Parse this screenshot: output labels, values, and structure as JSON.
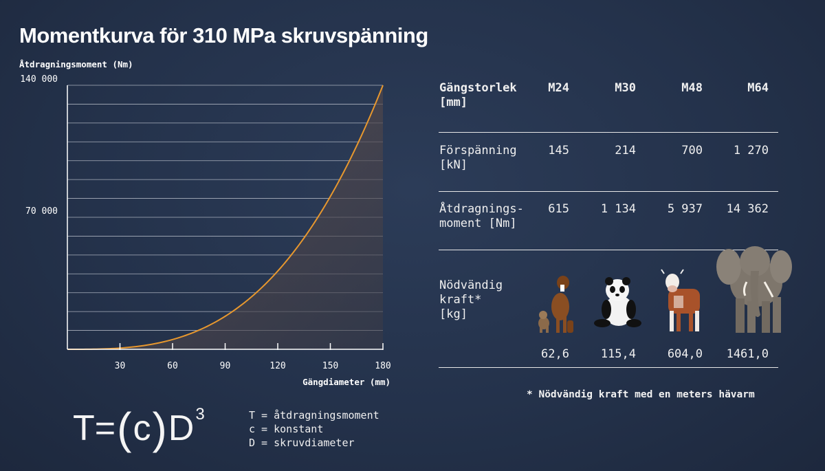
{
  "title": "Momentkurva för 310 MPa skruvspänning",
  "chart_data": {
    "type": "line",
    "title": "Momentkurva för 310 MPa skruvspänning",
    "ylabel": "Åtdragningsmoment (Nm)",
    "xlabel": "Gängdiameter (mm)",
    "x_ticks": [
      30,
      60,
      90,
      120,
      150,
      180
    ],
    "y_ticks": [
      "140 000",
      "70 000"
    ],
    "y_tick_values": [
      140000,
      70000
    ],
    "xlim": [
      0,
      180
    ],
    "ylim": [
      0,
      140000
    ],
    "grid": "horizontal",
    "curve": "cubic",
    "series": [
      {
        "x": [
          0,
          30,
          60,
          90,
          120,
          150,
          180
        ],
        "values": [
          0,
          648,
          5185,
          17500,
          41481,
          81019,
          140000
        ]
      }
    ]
  },
  "formula": {
    "lhs": "T",
    "eq": "=",
    "open": "(",
    "c": "c",
    "close": ")",
    "d": "D",
    "exp": "3"
  },
  "legend": [
    "T = åtdragningsmoment",
    "c = konstant",
    "D = skruvdiameter"
  ],
  "table": {
    "header_label": "Gängstorlek\n[mm]",
    "sizes": [
      "M24",
      "M30",
      "M48",
      "M64"
    ],
    "preload_label": "Förspänning\n[kN]",
    "preload": [
      "145",
      "214",
      "700",
      "1 270"
    ],
    "torque_label": "Åtdragnings-\nmoment [Nm]",
    "torque": [
      "615",
      "1 134",
      "5 937",
      "14 362"
    ],
    "force_label": "Nödvändig\nkraft*\n[kg]",
    "force": [
      "62,6",
      "115,4",
      "604,0",
      "1461,0"
    ],
    "animals": [
      "dog-icon",
      "panda-icon",
      "cow-icon",
      "elephant-icon"
    ]
  },
  "footnote": "* Nödvändig kraft med en meters hävarm",
  "colors": {
    "background": "#24324b",
    "curve": "#e8982e",
    "grid": "#d8dce4"
  }
}
